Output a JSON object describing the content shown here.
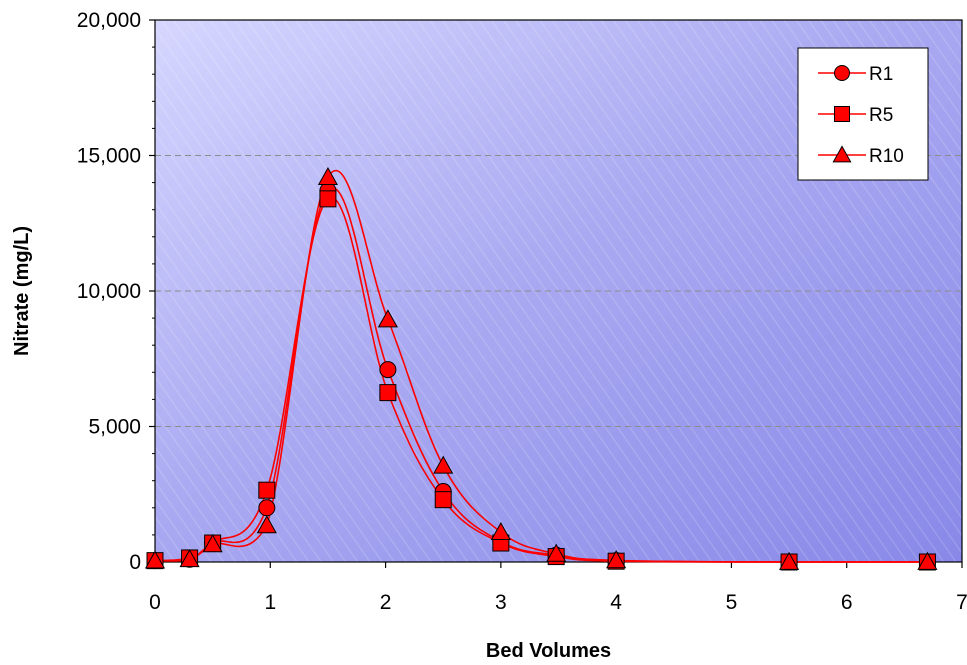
{
  "chart_data": {
    "type": "line",
    "title": "",
    "xlabel": "Bed Volumes",
    "ylabel": "Nitrate (mg/L)",
    "xlim": [
      0,
      7
    ],
    "ylim": [
      0,
      20000
    ],
    "x_ticks": [
      0,
      1,
      2,
      3,
      4,
      5,
      6,
      7
    ],
    "x_tick_labels": [
      "0",
      "1",
      "2",
      "3",
      "4",
      "5",
      "6",
      "7"
    ],
    "y_ticks": [
      0,
      5000,
      10000,
      15000,
      20000
    ],
    "y_tick_labels": [
      "0",
      "5,000",
      "10,000",
      "15,000",
      "20,000"
    ],
    "grid": "horizontal dashed",
    "legend_position": "top-right",
    "series": [
      {
        "name": "R1",
        "marker": "circle",
        "color": "#ff0000",
        "x": [
          0,
          0.3,
          0.5,
          0.97,
          1.5,
          2.02,
          2.5,
          3.0,
          3.48,
          4.0,
          5.5,
          6.7
        ],
        "y": [
          50,
          100,
          700,
          2000,
          13700,
          7100,
          2600,
          750,
          250,
          50,
          0,
          0
        ]
      },
      {
        "name": "R5",
        "marker": "square",
        "color": "#ff0000",
        "x": [
          0,
          0.3,
          0.5,
          0.97,
          1.5,
          2.02,
          2.5,
          3.0,
          3.48,
          4.0,
          5.5,
          6.7
        ],
        "y": [
          50,
          150,
          700,
          2650,
          13400,
          6250,
          2300,
          700,
          200,
          30,
          0,
          0
        ]
      },
      {
        "name": "R10",
        "marker": "triangle",
        "color": "#ff0000",
        "x": [
          0,
          0.3,
          0.5,
          0.97,
          1.5,
          2.02,
          2.5,
          3.0,
          3.48,
          4.0,
          5.5,
          6.7
        ],
        "y": [
          50,
          100,
          650,
          1350,
          14200,
          8950,
          3550,
          1100,
          300,
          60,
          0,
          0
        ]
      }
    ]
  }
}
